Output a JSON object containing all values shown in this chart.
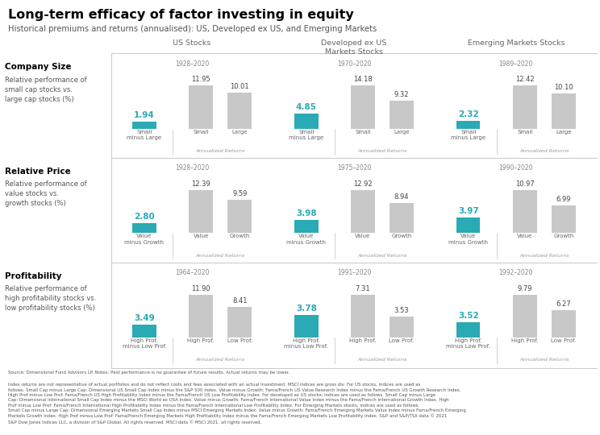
{
  "title": "Long-term efficacy of factor investing in equity",
  "subtitle": "Historical premiums and returns (annualised): US, Developed ex US, and Emerging Markets",
  "col_headers": [
    "US Stocks",
    "Developed ex US\nMarkets Stocks",
    "Emerging Markets Stocks"
  ],
  "row_labels": [
    {
      "name": "Company Size",
      "desc": "Relative performance of\nsmall cap stocks vs.\nlarge cap stocks (%)"
    },
    {
      "name": "Relative Price",
      "desc": "Relative performance of\nvalue stocks vs.\ngrowth stocks (%)"
    },
    {
      "name": "Profitability",
      "desc": "Relative performance of\nhigh profitability stocks vs.\nlow profitability stocks (%)"
    }
  ],
  "rows": [
    {
      "period_labels": [
        "1928–2020",
        "1970–2020",
        "1989–2020"
      ],
      "bar_labels": [
        [
          "Small\nminus Large",
          "Small",
          "Large"
        ],
        [
          "Small\nminus Large",
          "Small",
          "Large"
        ],
        [
          "Small\nminus Large",
          "Small",
          "Large"
        ]
      ],
      "values": [
        [
          1.94,
          11.95,
          10.01
        ],
        [
          4.85,
          14.18,
          9.32
        ],
        [
          2.32,
          12.42,
          10.1
        ]
      ]
    },
    {
      "period_labels": [
        "1928–2020",
        "1975–2020",
        "1990–2020"
      ],
      "bar_labels": [
        [
          "Value\nminus Growth",
          "Value",
          "Growth"
        ],
        [
          "Value\nminus Growth",
          "Value",
          "Growth"
        ],
        [
          "Value\nminus Growth",
          "Value",
          "Growth"
        ]
      ],
      "values": [
        [
          2.8,
          12.39,
          9.59
        ],
        [
          3.98,
          12.92,
          8.94
        ],
        [
          3.97,
          10.97,
          6.99
        ]
      ]
    },
    {
      "period_labels": [
        "1964–2020",
        "1991–2020",
        "1992–2020"
      ],
      "bar_labels": [
        [
          "High Prof.\nminus Low Prof.",
          "High Prof.",
          "Low Prof."
        ],
        [
          "High Prof.\nminus Low Prof.",
          "High Prof.",
          "Low Prof."
        ],
        [
          "High Prof.\nminus Low Prof.",
          "High Prof.",
          "Low Prof."
        ]
      ],
      "values": [
        [
          3.49,
          11.9,
          8.41
        ],
        [
          3.78,
          7.31,
          3.53
        ],
        [
          3.52,
          9.79,
          6.27
        ]
      ]
    }
  ],
  "teal_color": "#2aaab4",
  "gray_color": "#c8c8c8",
  "source_text_bold": "Source: Dimensional Fund Advisors LP.",
  "source_text_italic": "Notes: Past performance is no guarantee of future results. Actual returns may be lower.",
  "source_text_body": "Index returns are not representative of actual portfolios and do not reflect costs and fees associated with an actual investment. MSCI indices are gross div. For US stocks, indices are used as follows. Small Cap minus Large Cap: Dimensional US Small Cap Index minus the S&P 500 Index. Value minus Growth: Fama/French US Value Research Index minus the Fama/French US Growth Research Index. High Prof minus Low Prof: Fama/French US High Profitability Index minus the Fama/French US Low Profitability Index. For developed ex US stocks, indices are used as follows. Small Cap minus Large Cap: Dimensional International Small Cap Index minus the MSCI World ex USA Index. Value minus Growth: Fama/French International Value Index minus the Fama/French International Growth Index. High Prof minus Low Prof: Fama/French International High Profitability Index minus the Fama/French International Low Profitability Index. For Emerging Markets stocks, indices are used as follows. Small Cap minus Large Cap: Dimensional Emerging Markets Small Cap Index minus MSCI Emerging Markets Index. Value minus Growth: Fama/French Emerging Markets Value Index minus Fama/French Emerging Markets Growth Index. High Prof minus Low Prof: Fama/French Emerging Markets High Profitability Index minus the Fama/French Emerging Markets Low Profitability Index. S&P and S&P/TSX data © 2021 S&P Dow Jones Indices LLC, a division of S&P Global. All rights reserved. MSCI data © MSCI 2021, all rights reserved."
}
